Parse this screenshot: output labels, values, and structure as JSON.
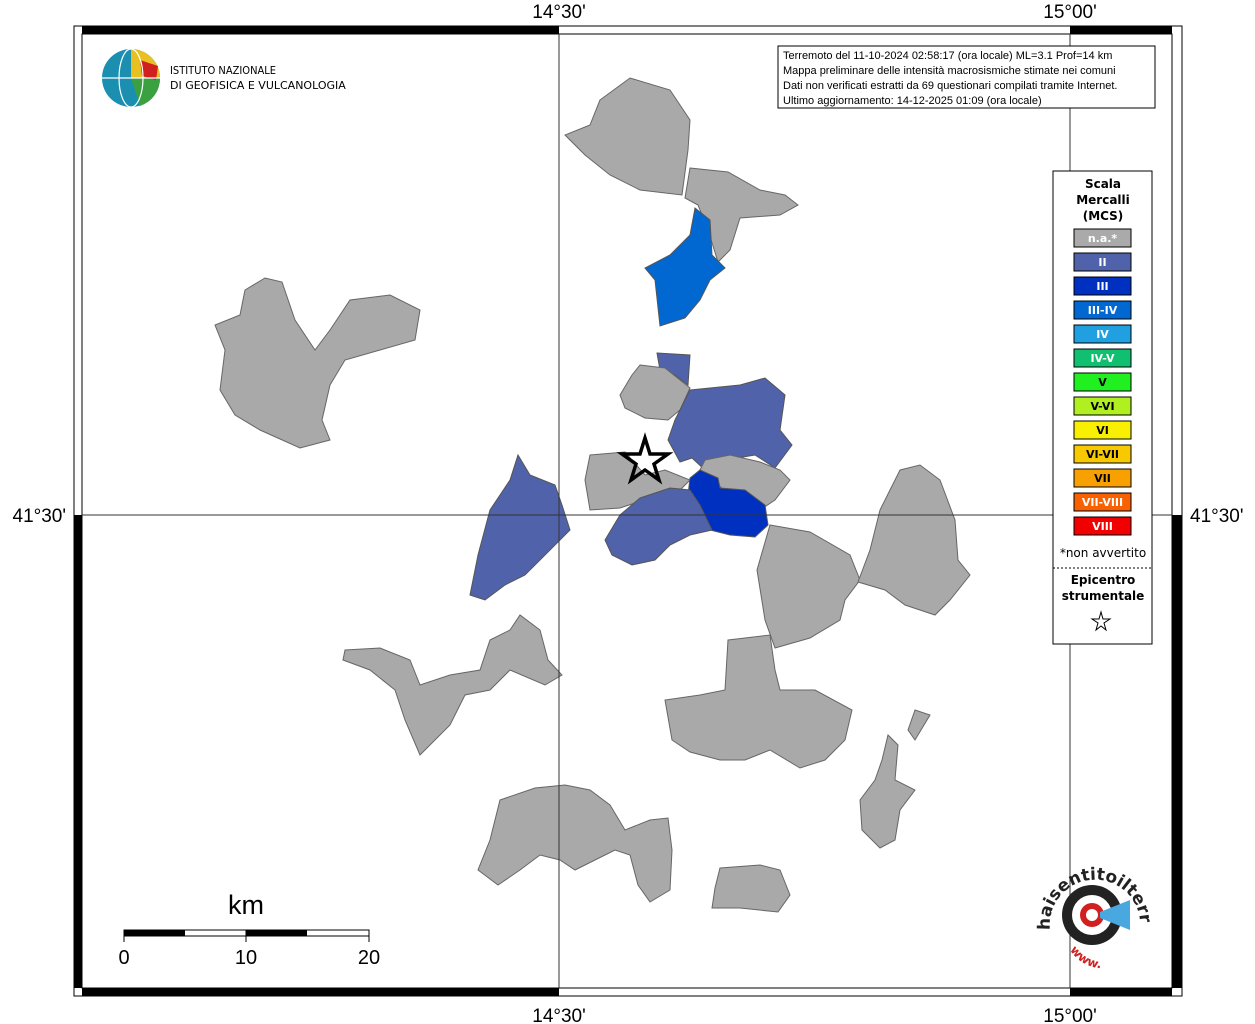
{
  "frame": {
    "x_labels": [
      "14°30'",
      "15°00'"
    ],
    "y_labels": [
      "41°30'"
    ]
  },
  "logo": {
    "line1": "ISTITUTO NAZIONALE",
    "line2": "DI GEOFISICA E VULCANOLOGIA"
  },
  "info": [
    "Terremoto del 11-10-2024 02:58:17 (ora locale) ML=3.1 Prof=14 km",
    "Mappa preliminare delle intensità macrosismiche stimate nei comuni",
    "Dati non verificati estratti da 69 questionari compilati tramite Internet.",
    "Ultimo aggiornamento: 14-12-2025 01:09 (ora locale)"
  ],
  "legend": {
    "title": [
      "Scala",
      "Mercalli",
      "(MCS)"
    ],
    "items": [
      {
        "label": "n.a.*",
        "color": "#aaaaaa"
      },
      {
        "label": "II",
        "color": "#5063aa"
      },
      {
        "label": "III",
        "color": "#0030c0"
      },
      {
        "label": "III-IV",
        "color": "#0068d0"
      },
      {
        "label": "IV",
        "color": "#20a0e0"
      },
      {
        "label": "IV-V",
        "color": "#10c070"
      },
      {
        "label": "V",
        "color": "#20f020"
      },
      {
        "label": "V-VI",
        "color": "#b0f020"
      },
      {
        "label": "VI",
        "color": "#f8f000"
      },
      {
        "label": "VI-VII",
        "color": "#f8c800"
      },
      {
        "label": "VII",
        "color": "#f8a000"
      },
      {
        "label": "VII-VIII",
        "color": "#f86000"
      },
      {
        "label": "VIII",
        "color": "#f00000"
      }
    ],
    "note": "*non avvertito",
    "epicenter": [
      "Epicentro",
      "strumentale"
    ]
  },
  "scale": {
    "unit": "km",
    "labels": [
      0,
      10,
      20
    ]
  },
  "badge": {
    "name": "haisentitoilterremoto.it",
    "web": "www."
  }
}
